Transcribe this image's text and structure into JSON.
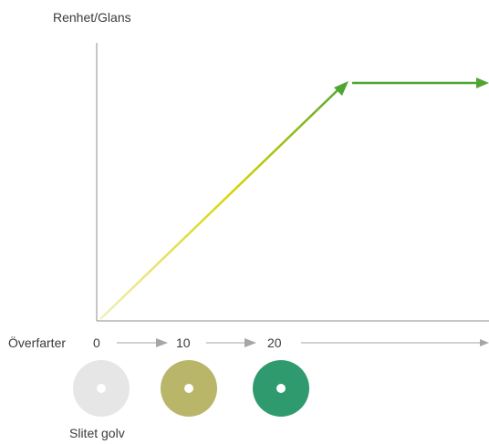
{
  "diagram": {
    "y_axis_label": "Renhet/Glans",
    "x_axis_label": "Överfarter",
    "tick_labels": [
      "0",
      "10",
      "20"
    ],
    "pads": [
      {
        "name": "white-pad",
        "color": "#e6e6e6"
      },
      {
        "name": "yellow-green-pad",
        "color": "#b9b66a"
      },
      {
        "name": "green-pad",
        "color": "#2f9a6e"
      }
    ],
    "pad_caption": "Slitet golv",
    "colors": {
      "axis": "#8c8c8c",
      "arrow_gray": "#a6a6a6",
      "curve_start": "#f2f0c0",
      "curve_mid": "#d6d400",
      "curve_end": "#4fa532",
      "plateau": "#4fa532"
    }
  }
}
